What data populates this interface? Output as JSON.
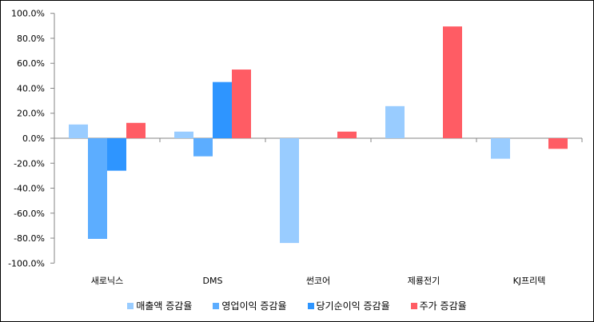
{
  "chart_data": {
    "type": "bar",
    "title": "",
    "xlabel": "",
    "ylabel": "",
    "categories": [
      "새로닉스",
      "DMS",
      "썬코어",
      "제룡전기",
      "KJ프리텍"
    ],
    "series": [
      {
        "name": "매출액 증감율",
        "color": "#99CCFF",
        "values": [
          11.0,
          5.3,
          -83.9,
          25.7,
          -16.4
        ]
      },
      {
        "name": "영업이익 증감율",
        "color": "#5CADFF",
        "values": [
          -80.6,
          -14.5,
          null,
          null,
          null
        ]
      },
      {
        "name": "당기순이익 증감율",
        "color": "#2E95FF",
        "values": [
          -26.0,
          45.0,
          null,
          null,
          null
        ]
      },
      {
        "name": "주가 증감율",
        "color": "#FF5C64",
        "values": [
          12.3,
          55.0,
          5.3,
          89.5,
          -8.5
        ]
      }
    ],
    "ylim": [
      -100,
      100
    ],
    "yticks": [
      100,
      80,
      60,
      40,
      20,
      0,
      -20,
      -40,
      -60,
      -80,
      -100
    ],
    "ytick_labels": [
      "100.0%",
      "80.0%",
      "60.0%",
      "40.0%",
      "20.0%",
      "0.0%",
      "-20.0%",
      "-40.0%",
      "-60.0%",
      "-80.0%",
      "-100.0%"
    ],
    "grid": false,
    "legend_position": "bottom"
  }
}
